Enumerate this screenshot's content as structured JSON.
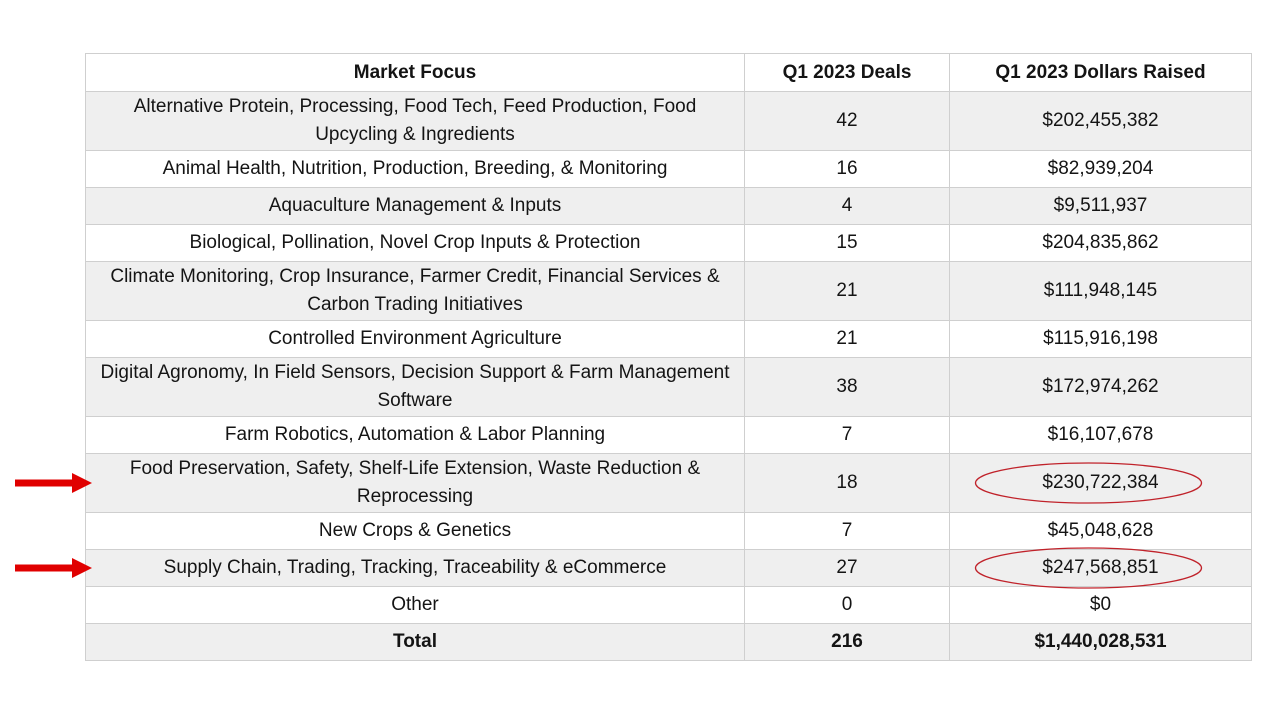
{
  "chart_data": {
    "type": "table",
    "columns": [
      "Market Focus",
      "Q1 2023 Deals",
      "Q1 2023 Dollars Raised"
    ],
    "rows": [
      {
        "focus": "Alternative Protein, Processing, Food Tech, Feed Production, Food Upcycling & Ingredients",
        "deals": "42",
        "dollars": "$202,455,382",
        "lines": 2
      },
      {
        "focus": "Animal Health, Nutrition, Production, Breeding, & Monitoring",
        "deals": "16",
        "dollars": "$82,939,204",
        "lines": 1
      },
      {
        "focus": "Aquaculture Management & Inputs",
        "deals": "4",
        "dollars": "$9,511,937",
        "lines": 1
      },
      {
        "focus": "Biological, Pollination, Novel Crop Inputs & Protection",
        "deals": "15",
        "dollars": "$204,835,862",
        "lines": 1
      },
      {
        "focus": "Climate Monitoring, Crop Insurance, Farmer Credit, Financial Services & Carbon Trading Initiatives",
        "deals": "21",
        "dollars": "$111,948,145",
        "lines": 2
      },
      {
        "focus": "Controlled Environment Agriculture",
        "deals": "21",
        "dollars": "$115,916,198",
        "lines": 1
      },
      {
        "focus": "Digital Agronomy, In Field Sensors, Decision Support & Farm Management Software",
        "deals": "38",
        "dollars": "$172,974,262",
        "lines": 2
      },
      {
        "focus": "Farm Robotics, Automation & Labor Planning",
        "deals": "7",
        "dollars": "$16,107,678",
        "lines": 1
      },
      {
        "focus": "Food Preservation, Safety, Shelf-Life Extension, Waste Reduction & Reprocessing",
        "deals": "18",
        "dollars": "$230,722,384",
        "lines": 2,
        "highlighted": true
      },
      {
        "focus": "New Crops & Genetics",
        "deals": "7",
        "dollars": "$45,048,628",
        "lines": 1
      },
      {
        "focus": "Supply Chain, Trading, Tracking, Traceability & eCommerce",
        "deals": "27",
        "dollars": "$247,568,851",
        "lines": 1,
        "highlighted": true
      },
      {
        "focus": "Other",
        "deals": "0",
        "dollars": "$0",
        "lines": 1
      }
    ],
    "total": {
      "focus": "Total",
      "deals": "216",
      "dollars": "$1,440,028,531"
    }
  },
  "colors": {
    "shaded_row": "#efefef",
    "grid": "#cfcfcf",
    "arrow": "#e00000",
    "circle": "#c0222a"
  },
  "annotations": {
    "arrow_icon": "right-arrow-icon",
    "circle_icon": "ellipse-highlight-icon"
  }
}
